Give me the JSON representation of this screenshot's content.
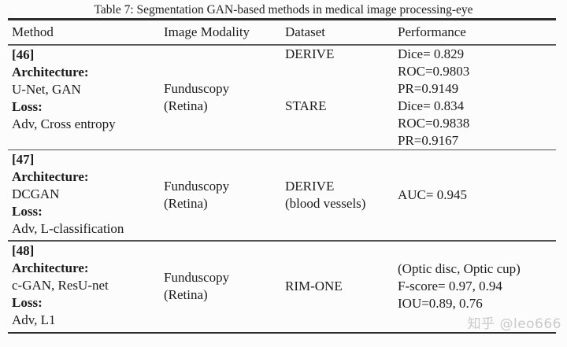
{
  "watermark": "知乎 @leo666",
  "table": {
    "title": "Table 7: Segmentation GAN-based methods in medical image processing-eye",
    "headers": [
      "Method",
      "Image Modality",
      "Dataset",
      "Performance"
    ],
    "rows": [
      {
        "ref": "[46]",
        "arch_label": "Architecture:",
        "arch": "U-Net, GAN",
        "loss_label": "Loss:",
        "loss": "Adv, Cross entropy",
        "modality": [
          "Funduscopy",
          "(Retina)"
        ],
        "datasets": [
          "DERIVE",
          "STARE"
        ],
        "performance": [
          "Dice= 0.829",
          "ROC=0.9803",
          "PR=0.9149",
          "Dice= 0.834",
          "ROC=0.9838",
          "PR=0.9167"
        ]
      },
      {
        "ref": "[47]",
        "arch_label": "Architecture:",
        "arch": "DCGAN",
        "loss_label": "Loss:",
        "loss": "Adv, L-classification",
        "modality": [
          "Funduscopy",
          "(Retina)"
        ],
        "datasets": [
          "DERIVE",
          "(blood vessels)"
        ],
        "performance": [
          "AUC= 0.945"
        ]
      },
      {
        "ref": "[48]",
        "arch_label": "Architecture:",
        "arch": "c-GAN, ResU-net",
        "loss_label": "Loss:",
        "loss": "Adv, L1",
        "modality": [
          "Funduscopy",
          "(Retina)"
        ],
        "datasets": [
          "RIM-ONE"
        ],
        "performance": [
          "(Optic disc, Optic cup)",
          "F-score= 0.97, 0.94",
          "IOU=0.89, 0.76"
        ]
      }
    ]
  }
}
